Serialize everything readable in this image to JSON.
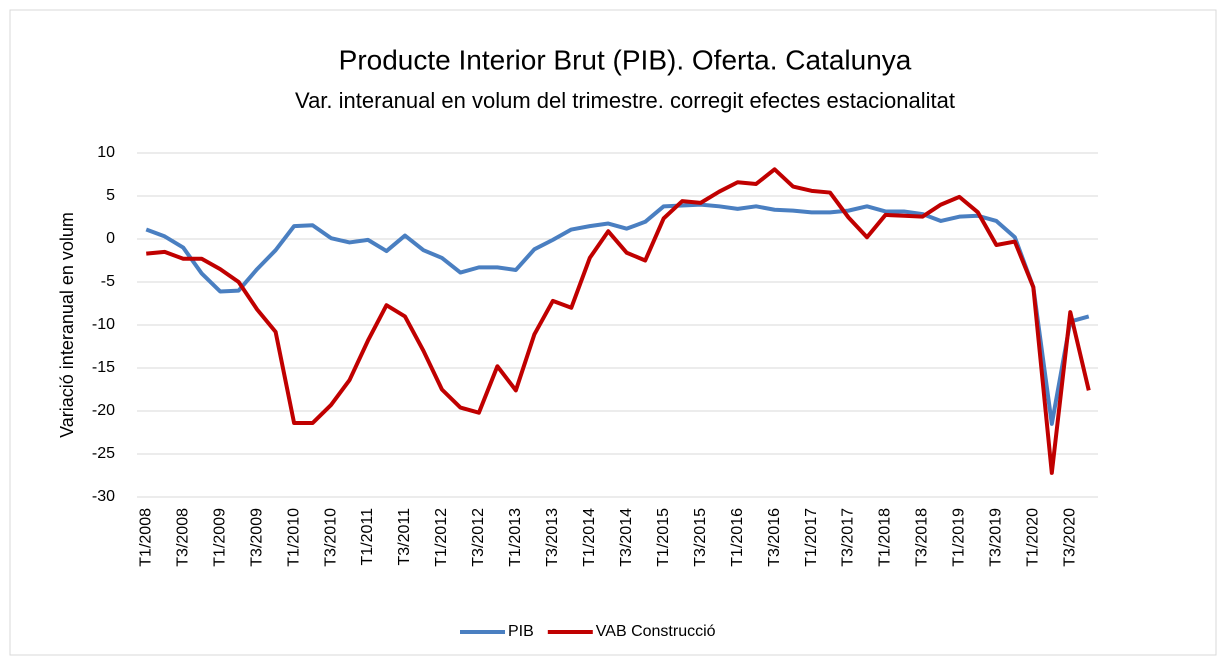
{
  "chart_data": {
    "type": "line",
    "title": "Producte Interior Brut (PIB). Oferta. Catalunya",
    "subtitle": "Var. interanual en volum del trimestre. corregit efectes estacionalitat",
    "y_label": "Variació interanual en volum",
    "categories": [
      "T1/2008",
      null,
      "T3/2008",
      null,
      "T1/2009",
      null,
      "T3/2009",
      null,
      "T1/2010",
      null,
      "T3/2010",
      null,
      "T1/2011",
      null,
      "T3/2011",
      null,
      "T1/2012",
      null,
      "T3/2012",
      null,
      "T1/2013",
      null,
      "T3/2013",
      null,
      "T1/2014",
      null,
      "T3/2014",
      null,
      "T1/2015",
      null,
      "T3/2015",
      null,
      "T1/2016",
      null,
      "T3/2016",
      null,
      "T1/2017",
      null,
      "T3/2017",
      null,
      "T1/2018",
      null,
      "T3/2018",
      null,
      "T1/2019",
      null,
      "T3/2019",
      null,
      "T1/2020",
      null,
      "T3/2020",
      null
    ],
    "series": [
      {
        "name": "PIB",
        "color": "#4a7fc1",
        "values": [
          1.1,
          0.3,
          -1.0,
          -4.0,
          -6.1,
          -6.0,
          -3.5,
          -1.3,
          1.5,
          1.6,
          0.1,
          -0.4,
          -0.1,
          -1.4,
          0.4,
          -1.3,
          -2.2,
          -3.9,
          -3.3,
          -3.3,
          -3.6,
          -1.2,
          -0.1,
          1.1,
          1.5,
          1.8,
          1.2,
          2.0,
          3.8,
          3.9,
          4.0,
          3.8,
          3.5,
          3.8,
          3.4,
          3.3,
          3.1,
          3.1,
          3.3,
          3.8,
          3.2,
          3.2,
          2.9,
          2.1,
          2.6,
          2.7,
          2.1,
          0.2,
          -5.6,
          -21.5,
          -9.6,
          -9.0
        ]
      },
      {
        "name": "VAB Construcció",
        "color": "#c00000",
        "values": [
          -1.7,
          -1.5,
          -2.3,
          -2.3,
          -3.5,
          -5.0,
          -8.2,
          -10.8,
          -21.4,
          -21.4,
          -19.3,
          -16.4,
          -11.8,
          -7.7,
          -9.0,
          -13.0,
          -17.5,
          -19.6,
          -20.2,
          -14.8,
          -17.6,
          -11.1,
          -7.2,
          -8.0,
          -2.2,
          0.9,
          -1.6,
          -2.5,
          2.4,
          4.4,
          4.2,
          5.5,
          6.6,
          6.4,
          8.1,
          6.1,
          5.6,
          5.4,
          2.5,
          0.2,
          2.8,
          2.7,
          2.6,
          4.0,
          4.9,
          3.1,
          -0.7,
          -0.3,
          -5.6,
          -27.2,
          -8.5,
          -17.6
        ]
      }
    ],
    "ylim": [
      -30,
      10
    ],
    "yticks": [
      -30,
      -25,
      -20,
      -15,
      -10,
      -5,
      0,
      5,
      10
    ],
    "grid": true,
    "legend": "bottom"
  }
}
